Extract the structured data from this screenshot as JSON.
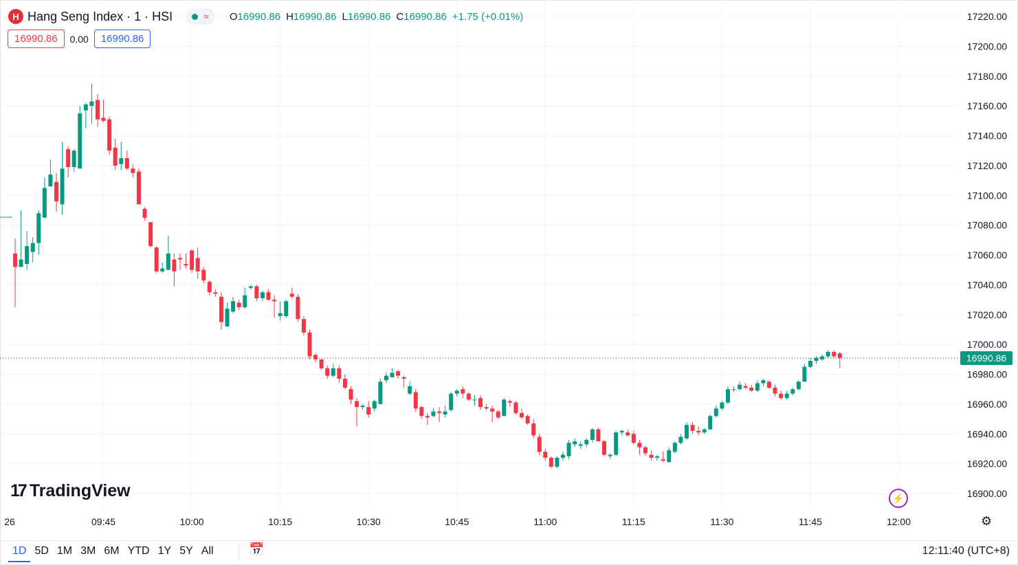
{
  "header": {
    "title": "Hang Seng Index · 1 · HSI",
    "logo_letter": "H",
    "open_label": "O",
    "open": "16990.86",
    "high_label": "H",
    "high": "16990.86",
    "low_label": "L",
    "low": "16990.86",
    "close_label": "C",
    "close": "16990.86",
    "change": "+1.75 (+0.01%)",
    "bid": "16990.86",
    "spread": "0.00",
    "ask": "16990.86",
    "wave_icon": "≈"
  },
  "branding": {
    "name": "TradingView",
    "mark": "17"
  },
  "bottom_bar": {
    "ranges": [
      "1D",
      "5D",
      "1M",
      "3M",
      "6M",
      "YTD",
      "1Y",
      "5Y",
      "All"
    ],
    "active_range": "1D",
    "clock": "12:11:40 (UTC+8)"
  },
  "colors": {
    "up": "#089981",
    "down": "#f23645",
    "grid": "#f0f3fa",
    "axis_text": "#131722",
    "accent": "#2962ff"
  },
  "chart_data": {
    "type": "candlestick",
    "current_price": 16990.86,
    "current_price_label": "16990.86",
    "ylim": [
      16890,
      17230
    ],
    "y_ticks": [
      16900,
      16920,
      16940,
      16960,
      16980,
      17000,
      17020,
      17040,
      17060,
      17080,
      17100,
      17120,
      17140,
      17160,
      17180,
      17200,
      17220
    ],
    "y_tick_labels": [
      "16900.00",
      "16920.00",
      "16940.00",
      "16960.00",
      "16980.00",
      "17000.00",
      "17020.00",
      "17040.00",
      "17060.00",
      "17080.00",
      "17100.00",
      "17120.00",
      "17140.00",
      "17160.00",
      "17180.00",
      "17200.00",
      "17220.00"
    ],
    "x_tick_labels": [
      "26",
      "09:45",
      "10:00",
      "10:15",
      "10:30",
      "10:45",
      "11:00",
      "11:15",
      "11:30",
      "11:45",
      "12:00"
    ],
    "x_tick_minutes": [
      -15,
      15,
      30,
      45,
      60,
      75,
      90,
      105,
      120,
      135,
      150
    ],
    "grid": true,
    "candles": [
      [
        0,
        17061,
        17071,
        17025,
        17052
      ],
      [
        1,
        17052,
        17090,
        17052,
        17057
      ],
      [
        2,
        17054,
        17076,
        17050,
        17066
      ],
      [
        3,
        17062,
        17072,
        17055,
        17068
      ],
      [
        4,
        17068,
        17090,
        17060,
        17088
      ],
      [
        5,
        17085,
        17112,
        17085,
        17105
      ],
      [
        6,
        17106,
        17124,
        17106,
        17114
      ],
      [
        7,
        17109,
        17115,
        17089,
        17096
      ],
      [
        8,
        17094,
        17136,
        17087,
        17118
      ],
      [
        9,
        17131,
        17133,
        17112,
        17119
      ],
      [
        10,
        17119,
        17131,
        17116,
        17130
      ],
      [
        11,
        17118,
        17160,
        17118,
        17155
      ],
      [
        12,
        17157,
        17162,
        17145,
        17161
      ],
      [
        13,
        17160,
        17175,
        17148,
        17163
      ],
      [
        14,
        17164,
        17168,
        17146,
        17151
      ],
      [
        15,
        17152,
        17164,
        17149,
        17150
      ],
      [
        16,
        17151,
        17153,
        17127,
        17130
      ],
      [
        17,
        17132,
        17138,
        17117,
        17120
      ],
      [
        18,
        17121,
        17136,
        17117,
        17125
      ],
      [
        19,
        17125,
        17130,
        17117,
        17118
      ],
      [
        20,
        17118,
        17121,
        17112,
        17115
      ],
      [
        21,
        17116,
        17118,
        17094,
        17094
      ],
      [
        22,
        17091,
        17092,
        17083,
        17085
      ],
      [
        23,
        17082,
        17082,
        17065,
        17066
      ],
      [
        24,
        17065,
        17066,
        17048,
        17049
      ],
      [
        25,
        17049,
        17055,
        17048,
        17051
      ],
      [
        26,
        17050,
        17073,
        17050,
        17061
      ],
      [
        27,
        17057,
        17061,
        17039,
        17049
      ],
      [
        28,
        17058,
        17061,
        17050,
        17057
      ],
      [
        29,
        17054,
        17061,
        17051,
        17053
      ],
      [
        30,
        17063,
        17064,
        17048,
        17050
      ],
      [
        31,
        17058,
        17065,
        17044,
        17049
      ],
      [
        32,
        17050,
        17052,
        17041,
        17043
      ],
      [
        33,
        17042,
        17043,
        17033,
        17035
      ],
      [
        34,
        17035,
        17037,
        17032,
        17034
      ],
      [
        35,
        17032,
        17035,
        17010,
        17015
      ],
      [
        36,
        17012,
        17028,
        17012,
        17024
      ],
      [
        37,
        17022,
        17032,
        17021,
        17029
      ],
      [
        38,
        17028,
        17030,
        17023,
        17025
      ],
      [
        39,
        17025,
        17038,
        17024,
        17033
      ],
      [
        40,
        17038,
        17040,
        17037,
        17039
      ],
      [
        41,
        17039,
        17040,
        17029,
        17031
      ],
      [
        42,
        17031,
        17036,
        17029,
        17035
      ],
      [
        43,
        17035,
        17037,
        17029,
        17030
      ],
      [
        44,
        17030,
        17033,
        17018,
        17029
      ],
      [
        45,
        17019,
        17029,
        17016,
        17021
      ],
      [
        46,
        17019,
        17030,
        17018,
        17029
      ],
      [
        47,
        17034,
        17038,
        17031,
        17032
      ],
      [
        48,
        17032,
        17034,
        17015,
        17017
      ],
      [
        49,
        17017,
        17019,
        17006,
        17008
      ],
      [
        50,
        17008,
        17010,
        16990,
        16992
      ],
      [
        51,
        16993,
        16994,
        16988,
        16990
      ],
      [
        52,
        16990,
        16990,
        16983,
        16984
      ],
      [
        53,
        16984,
        16986,
        16977,
        16979
      ],
      [
        54,
        16979,
        16987,
        16978,
        16984
      ],
      [
        55,
        16984,
        16986,
        16974,
        16977
      ],
      [
        56,
        16977,
        16980,
        16970,
        16971
      ],
      [
        57,
        16970,
        16972,
        16960,
        16963
      ],
      [
        58,
        16962,
        16964,
        16945,
        16958
      ],
      [
        59,
        16958,
        16960,
        16956,
        16959
      ],
      [
        60,
        16958,
        16962,
        16951,
        16953
      ],
      [
        61,
        16957,
        16963,
        16955,
        16962
      ],
      [
        62,
        16960,
        16977,
        16960,
        16975
      ],
      [
        63,
        16976,
        16981,
        16974,
        16979
      ],
      [
        64,
        16978,
        16984,
        16978,
        16981
      ],
      [
        65,
        16982,
        16983,
        16977,
        16979
      ],
      [
        66,
        16978,
        16979,
        16971,
        16977
      ],
      [
        67,
        16967,
        16975,
        16966,
        16972
      ],
      [
        68,
        16968,
        16970,
        16955,
        16957
      ],
      [
        69,
        16958,
        16959,
        16950,
        16952
      ],
      [
        70,
        16952,
        16954,
        16946,
        16951
      ],
      [
        71,
        16952,
        16957,
        16951,
        16955
      ],
      [
        72,
        16955,
        16958,
        16948,
        16954
      ],
      [
        73,
        16953,
        16959,
        16951,
        16955
      ],
      [
        74,
        16956,
        16968,
        16955,
        16967
      ],
      [
        75,
        16967,
        16970,
        16965,
        16969
      ],
      [
        76,
        16970,
        16972,
        16964,
        16967
      ],
      [
        77,
        16967,
        16968,
        16962,
        16963
      ],
      [
        78,
        16963,
        16966,
        16959,
        16963
      ],
      [
        79,
        16964,
        16966,
        16956,
        16958
      ],
      [
        80,
        16958,
        16960,
        16956,
        16957
      ],
      [
        81,
        16957,
        16959,
        16948,
        16955
      ],
      [
        82,
        16955,
        16956,
        16950,
        16951
      ],
      [
        83,
        16952,
        16964,
        16952,
        16963
      ],
      [
        84,
        16962,
        16963,
        16958,
        16961
      ],
      [
        85,
        16961,
        16962,
        16953,
        16954
      ],
      [
        86,
        16954,
        16957,
        16950,
        16951
      ],
      [
        87,
        16952,
        16953,
        16946,
        16947
      ],
      [
        88,
        16947,
        16950,
        16937,
        16939
      ],
      [
        89,
        16938,
        16940,
        16926,
        16928
      ],
      [
        90,
        16928,
        16930,
        16922,
        16924
      ],
      [
        91,
        16924,
        16925,
        16917,
        16918
      ],
      [
        92,
        16918,
        16925,
        16917,
        16924
      ],
      [
        93,
        16924,
        16928,
        16922,
        16926
      ],
      [
        94,
        16925,
        16936,
        16923,
        16934
      ],
      [
        95,
        16933,
        16937,
        16931,
        16935
      ],
      [
        96,
        16932,
        16935,
        16930,
        16933
      ],
      [
        97,
        16933,
        16937,
        16931,
        16936
      ],
      [
        98,
        16936,
        16944,
        16934,
        16943
      ],
      [
        99,
        16943,
        16944,
        16935,
        16935
      ],
      [
        100,
        16935,
        16936,
        16925,
        16926
      ],
      [
        101,
        16925,
        16927,
        16923,
        16926
      ],
      [
        102,
        16926,
        16942,
        16925,
        16941
      ],
      [
        103,
        16941,
        16943,
        16939,
        16942
      ],
      [
        104,
        16941,
        16943,
        16938,
        16939
      ],
      [
        105,
        16940,
        16942,
        16933,
        16934
      ],
      [
        106,
        16934,
        16936,
        16926,
        16931
      ],
      [
        107,
        16931,
        16932,
        16925,
        16927
      ],
      [
        108,
        16926,
        16929,
        16922,
        16924
      ],
      [
        109,
        16924,
        16926,
        16922,
        16925
      ],
      [
        110,
        16923,
        16928,
        16921,
        16922
      ],
      [
        111,
        16921,
        16931,
        16921,
        16929
      ],
      [
        112,
        16928,
        16935,
        16927,
        16934
      ],
      [
        113,
        16934,
        16940,
        16933,
        16938
      ],
      [
        114,
        16937,
        16948,
        16936,
        16946
      ],
      [
        115,
        16946,
        16948,
        16940,
        16942
      ],
      [
        116,
        16942,
        16945,
        16939,
        16941
      ],
      [
        117,
        16941,
        16944,
        16940,
        16943
      ],
      [
        118,
        16943,
        16953,
        16943,
        16952
      ],
      [
        119,
        16952,
        16959,
        16951,
        16957
      ],
      [
        120,
        16957,
        16962,
        16956,
        16961
      ],
      [
        121,
        16961,
        16972,
        16960,
        16970
      ],
      [
        122,
        16970,
        16972,
        16968,
        16970
      ],
      [
        123,
        16970,
        16975,
        16969,
        16973
      ],
      [
        124,
        16972,
        16974,
        16970,
        16971
      ],
      [
        125,
        16971,
        16973,
        16968,
        16969
      ],
      [
        126,
        16969,
        16976,
        16968,
        16974
      ],
      [
        127,
        16974,
        16977,
        16972,
        16976
      ],
      [
        128,
        16975,
        16976,
        16970,
        16971
      ],
      [
        129,
        16971,
        16973,
        16965,
        16967
      ],
      [
        130,
        16967,
        16969,
        16963,
        16964
      ],
      [
        131,
        16964,
        16969,
        16963,
        16967
      ],
      [
        132,
        16967,
        16971,
        16966,
        16970
      ],
      [
        133,
        16970,
        16976,
        16969,
        16975
      ],
      [
        134,
        16975,
        16987,
        16975,
        16985
      ],
      [
        135,
        16985,
        16991,
        16984,
        16989
      ],
      [
        136,
        16989,
        16992,
        16987,
        16991
      ],
      [
        137,
        16990,
        16993,
        16989,
        16992
      ],
      [
        138,
        16992,
        16996,
        16991,
        16995
      ],
      [
        139,
        16995,
        16996,
        16991,
        16992
      ],
      [
        140,
        16994,
        16995,
        16984,
        16991
      ]
    ]
  }
}
